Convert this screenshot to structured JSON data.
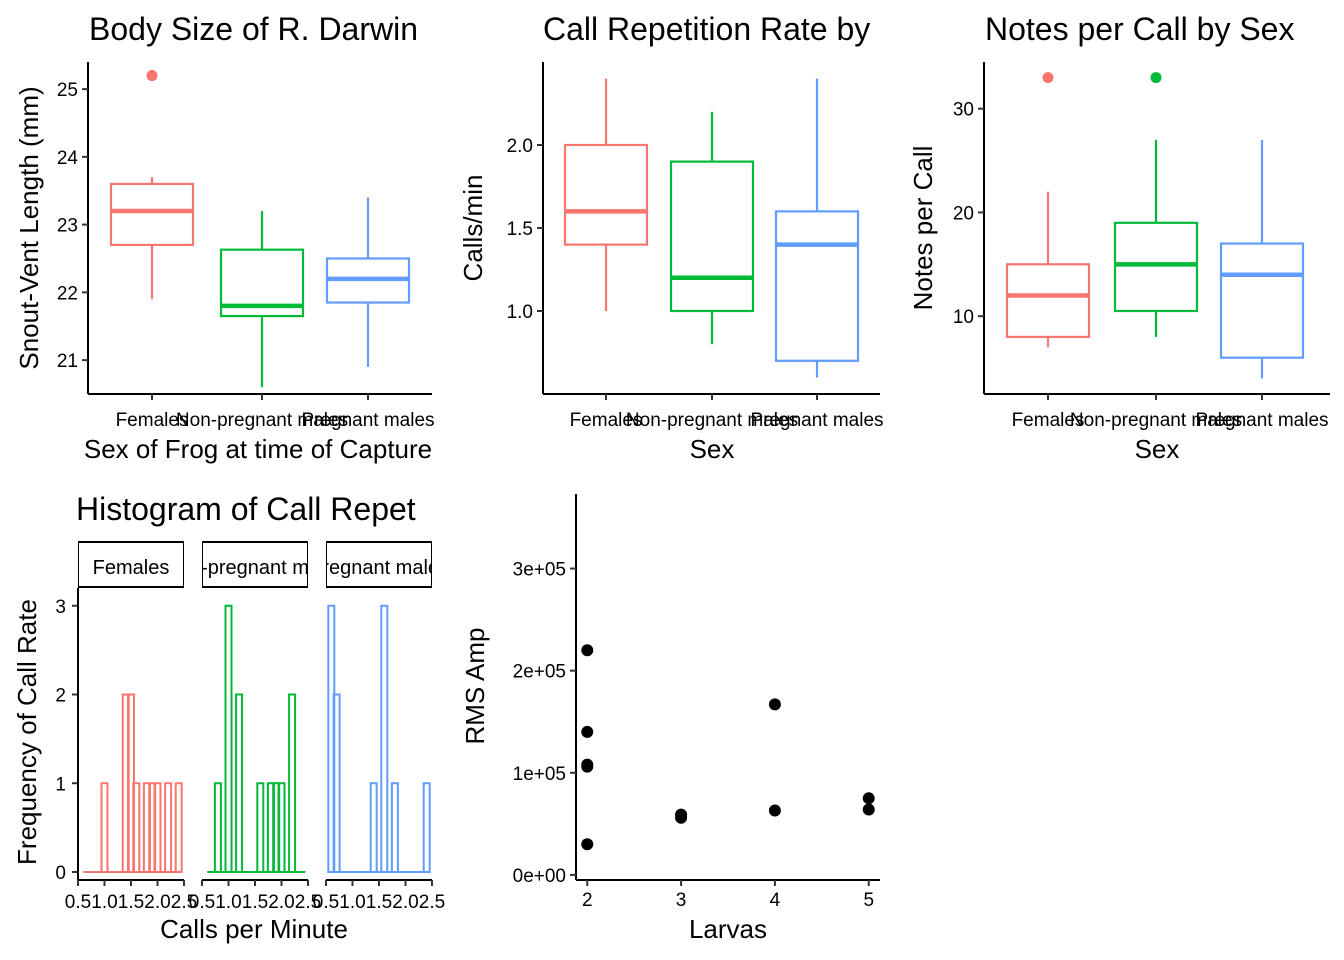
{
  "colors": {
    "females": "#F8766D",
    "nonpregnant": "#00BA38",
    "pregnant": "#619CFF",
    "axis": "#000000",
    "tick_label": "#4D4D4D",
    "point": "#000000"
  },
  "chart_data": [
    {
      "type": "boxplot",
      "title": "Body Size of R. Darwin",
      "xlabel": "Sex of Frog at time of Capture",
      "ylabel": "Snout-Vent Length (mm)",
      "ylim": [
        20.5,
        25.4
      ],
      "yticks": [
        21,
        22,
        23,
        24,
        25
      ],
      "categories": [
        "Females",
        "Non-pregnant males",
        "Pregnant males"
      ],
      "boxes": [
        {
          "group": "Females",
          "min": 21.9,
          "q1": 22.7,
          "median": 23.2,
          "q3": 23.6,
          "max": 23.7,
          "outliers": [
            25.2
          ]
        },
        {
          "group": "Non-pregnant males",
          "min": 20.6,
          "q1": 21.65,
          "median": 21.8,
          "q3": 22.63,
          "max": 23.2,
          "outliers": []
        },
        {
          "group": "Pregnant males",
          "min": 20.9,
          "q1": 21.85,
          "median": 22.2,
          "q3": 22.5,
          "max": 23.4,
          "outliers": []
        }
      ]
    },
    {
      "type": "boxplot",
      "title": "Call Repetition Rate by",
      "xlabel": "Sex",
      "ylabel": "Calls/min",
      "ylim": [
        0.5,
        2.5
      ],
      "yticks": [
        1.0,
        1.5,
        2.0
      ],
      "categories": [
        "Females",
        "Non-pregnant males",
        "Pregnant males"
      ],
      "boxes": [
        {
          "group": "Females",
          "min": 1.0,
          "q1": 1.4,
          "median": 1.6,
          "q3": 2.0,
          "max": 2.4,
          "outliers": []
        },
        {
          "group": "Non-pregnant males",
          "min": 0.8,
          "q1": 1.0,
          "median": 1.2,
          "q3": 1.9,
          "max": 2.2,
          "outliers": []
        },
        {
          "group": "Pregnant males",
          "min": 0.6,
          "q1": 0.7,
          "median": 1.4,
          "q3": 1.6,
          "max": 2.4,
          "outliers": []
        }
      ]
    },
    {
      "type": "boxplot",
      "title": "Notes per Call by Sex",
      "xlabel": "Sex",
      "ylabel": "Notes per Call",
      "ylim": [
        2.5,
        34.5
      ],
      "yticks": [
        10,
        20,
        30
      ],
      "categories": [
        "Females",
        "Non-pregnant males",
        "Pregnant males"
      ],
      "boxes": [
        {
          "group": "Females",
          "min": 7,
          "q1": 8,
          "median": 12,
          "q3": 15,
          "max": 22,
          "outliers": [
            33
          ]
        },
        {
          "group": "Non-pregnant males",
          "min": 8,
          "q1": 10.5,
          "median": 15,
          "q3": 19,
          "max": 27,
          "outliers": [
            33
          ]
        },
        {
          "group": "Pregnant males",
          "min": 4,
          "q1": 6,
          "median": 14,
          "q3": 17,
          "max": 27,
          "outliers": []
        }
      ]
    },
    {
      "type": "histogram",
      "title": "Histogram of Call Repet",
      "xlabel": "Calls per Minute",
      "ylabel": "Frequency of Call Rate",
      "xlim": [
        0.5,
        2.5
      ],
      "ylim": [
        0,
        3.2
      ],
      "xtick_labels": [
        "0.5",
        "1.0",
        "1.5",
        "2.0",
        "2.5"
      ],
      "yticks": [
        0,
        1,
        2,
        3
      ],
      "panels": [
        {
          "strip": "Females",
          "bins": [
            [
              1.0,
              1
            ],
            [
              1.4,
              2
            ],
            [
              1.5,
              2
            ],
            [
              1.6,
              1
            ],
            [
              1.8,
              1
            ],
            [
              1.9,
              1
            ],
            [
              2.0,
              1
            ],
            [
              2.2,
              1
            ],
            [
              2.4,
              1
            ]
          ]
        },
        {
          "strip": "Non-pregnant males",
          "bins": [
            [
              0.8,
              1
            ],
            [
              1.0,
              3
            ],
            [
              1.2,
              2
            ],
            [
              1.6,
              1
            ],
            [
              1.8,
              1
            ],
            [
              1.9,
              1
            ],
            [
              2.0,
              1
            ],
            [
              2.2,
              2
            ]
          ]
        },
        {
          "strip": "Pregnant males",
          "bins": [
            [
              0.6,
              3
            ],
            [
              0.7,
              2
            ],
            [
              1.4,
              1
            ],
            [
              1.6,
              3
            ],
            [
              1.8,
              1
            ],
            [
              2.4,
              1
            ]
          ]
        }
      ]
    },
    {
      "type": "scatter",
      "xlabel": "Larvas",
      "ylabel": "RMS Amp",
      "xlim": [
        1.88,
        5.12
      ],
      "ylim": [
        -5000,
        373000
      ],
      "xticks": [
        2,
        3,
        4,
        5
      ],
      "ytick_labels": [
        "0e+00",
        "1e+05",
        "2e+05",
        "3e+05"
      ],
      "ytick_values": [
        0,
        100000,
        200000,
        300000
      ],
      "points": [
        {
          "x": 2,
          "y": 220000
        },
        {
          "x": 2,
          "y": 140000
        },
        {
          "x": 2,
          "y": 108000
        },
        {
          "x": 2,
          "y": 106000
        },
        {
          "x": 2,
          "y": 30000
        },
        {
          "x": 3,
          "y": 59000
        },
        {
          "x": 3,
          "y": 56000
        },
        {
          "x": 4,
          "y": 167000
        },
        {
          "x": 4,
          "y": 63000
        },
        {
          "x": 5,
          "y": 75000
        },
        {
          "x": 5,
          "y": 64000
        }
      ]
    }
  ]
}
